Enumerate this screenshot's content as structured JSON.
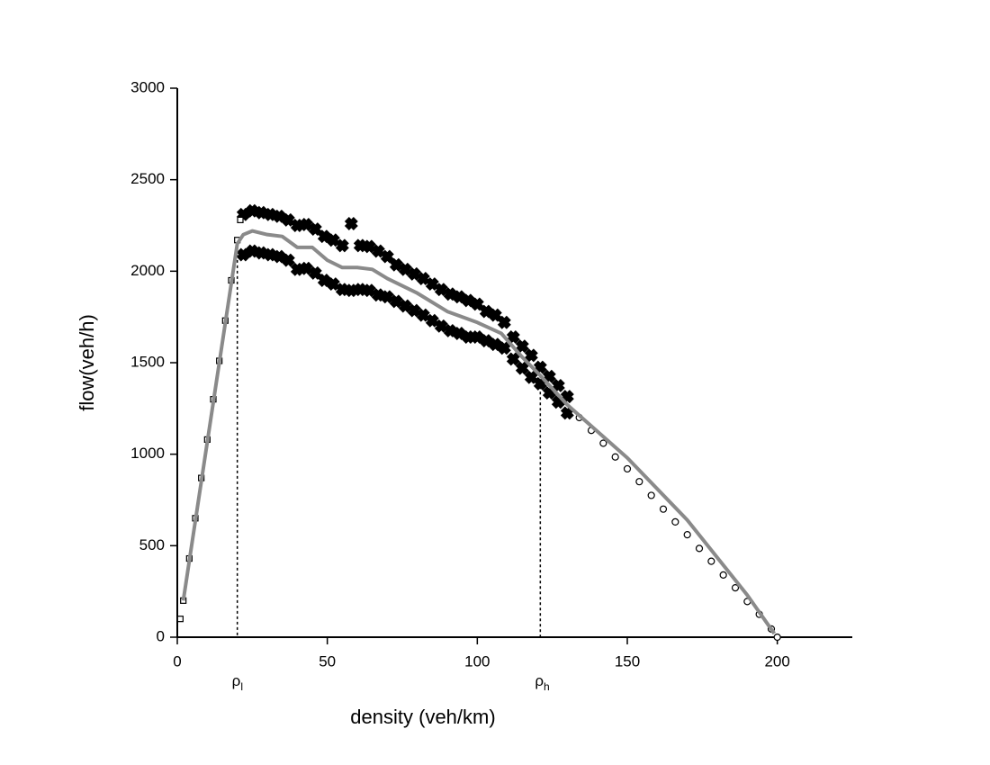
{
  "chart_data": {
    "type": "scatter",
    "xlabel": "density (veh/km)",
    "ylabel": "flow(veh/h)",
    "xlim": [
      0,
      225
    ],
    "ylim": [
      0,
      3000
    ],
    "xticks": [
      0,
      50,
      100,
      150,
      200
    ],
    "yticks": [
      0,
      500,
      1000,
      1500,
      2000,
      2500,
      3000
    ],
    "series": [
      {
        "marker": "cross",
        "color": "#000000",
        "x": [
          22,
          25,
          28,
          31,
          34,
          37,
          40,
          43,
          46,
          49,
          52,
          55,
          58,
          61,
          64,
          67,
          70,
          73,
          76,
          79,
          82,
          85,
          88,
          91,
          94,
          97,
          100,
          103,
          106,
          109,
          112,
          115,
          118,
          121,
          124,
          127,
          130,
          22,
          25,
          28,
          31,
          34,
          37,
          40,
          43,
          46,
          49,
          52,
          55,
          58,
          61,
          64,
          67,
          70,
          73,
          76,
          79,
          82,
          85,
          88,
          91,
          94,
          97,
          100,
          103,
          106,
          109,
          112,
          115,
          118,
          121,
          124,
          127,
          130
        ],
        "values": [
          2310,
          2330,
          2320,
          2310,
          2300,
          2280,
          2250,
          2255,
          2230,
          2190,
          2170,
          2140,
          2260,
          2140,
          2135,
          2110,
          2080,
          2035,
          2010,
          1985,
          1960,
          1930,
          1900,
          1875,
          1860,
          1840,
          1820,
          1780,
          1760,
          1720,
          1640,
          1590,
          1540,
          1475,
          1425,
          1375,
          1315,
          2090,
          2110,
          2100,
          2090,
          2080,
          2060,
          2010,
          2015,
          1990,
          1950,
          1930,
          1900,
          1895,
          1900,
          1895,
          1870,
          1860,
          1835,
          1810,
          1785,
          1760,
          1730,
          1700,
          1675,
          1660,
          1640,
          1640,
          1620,
          1600,
          1580,
          1520,
          1470,
          1420,
          1385,
          1335,
          1285,
          1225
        ]
      },
      {
        "marker": "square",
        "color": "#000000",
        "x": [
          1,
          2,
          4,
          6,
          8,
          10,
          12,
          14,
          16,
          18,
          20,
          21
        ],
        "values": [
          100,
          200,
          430,
          650,
          870,
          1080,
          1300,
          1510,
          1730,
          1950,
          2170,
          2280
        ]
      },
      {
        "marker": "circle",
        "color": "#000000",
        "x": [
          134,
          138,
          142,
          146,
          150,
          154,
          158,
          162,
          166,
          170,
          174,
          178,
          182,
          186,
          190,
          194,
          198,
          200
        ],
        "values": [
          1200,
          1130,
          1060,
          985,
          920,
          850,
          775,
          700,
          630,
          560,
          485,
          415,
          340,
          270,
          195,
          125,
          45,
          0
        ]
      },
      {
        "marker": "line",
        "color": "#8a8a8a",
        "x": [
          2,
          20,
          22,
          25,
          30,
          35,
          40,
          45,
          50,
          55,
          60,
          65,
          70,
          80,
          90,
          100,
          108,
          115,
          121,
          130,
          150,
          170,
          190,
          199
        ],
        "values": [
          200,
          2150,
          2200,
          2220,
          2200,
          2190,
          2130,
          2130,
          2060,
          2020,
          2020,
          2010,
          1960,
          1880,
          1780,
          1720,
          1660,
          1530,
          1430,
          1270,
          980,
          640,
          230,
          20
        ]
      }
    ],
    "annotations": [
      {
        "text": "ρ",
        "sub": "l",
        "x": 20,
        "y": 2150
      },
      {
        "text": "ρ",
        "sub": "h",
        "x": 121,
        "y": 1430
      }
    ]
  }
}
